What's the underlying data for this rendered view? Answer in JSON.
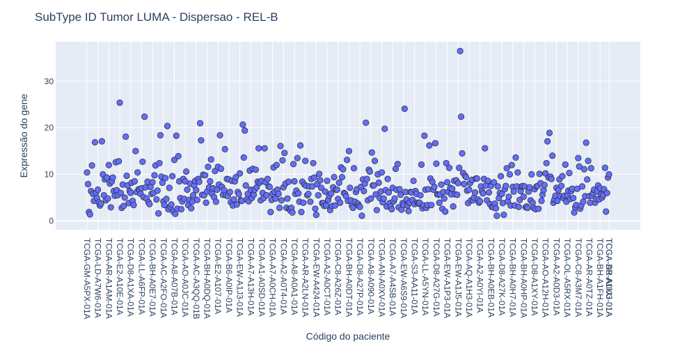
{
  "chart_data": {
    "type": "scatter",
    "title": "SubType ID Tumor LUMA - Dispersao - REL-B",
    "xlabel": "Código do paciente",
    "ylabel": "Expressão do gene",
    "ylim": [
      -1.9,
      38.5
    ],
    "yticks": [
      0,
      10,
      20,
      30
    ],
    "grid": true,
    "legend": "none",
    "colors": {
      "plot_bg": "#e5ecf6",
      "grid": "#ffffff",
      "marker": "#636efa",
      "marker_edge": "#2f2f3a",
      "text": "#2a3f5f"
    },
    "x_labels": [
      "TCGA-GM-A5PX-01A",
      "TCGA-LD-A7W6-01A",
      "TCGA-AR-A1AM-01A",
      "TCGA-E2-A10E-01A",
      "TCGA-D8-A1XA-01A",
      "TCGA-LL-A6FP-01A",
      "TCGA-BH-A0E7-01A",
      "TCGA-AC-A2FO-01A",
      "TCGA-A8-A07B-01A",
      "TCGA-AO-A0JC-01A",
      "TCGA-AC-A3QQ-01B",
      "TCGA-BH-A0DQ-01A",
      "TCGA-E2-A107-01A",
      "TCGA-B6-A0IP-01A",
      "TCGA-EW-A1J3-01A",
      "TCGA-A7-A13H-01A",
      "TCGA-A1-A0SD-01A",
      "TCGA-A7-A0CH-01A",
      "TCGA-A2-A0T4-01A",
      "TCGA-A8-A0A1-01A",
      "TCGA-AR-A2LN-01A",
      "TCGA-EW-A424-01A",
      "TCGA-A2-A0CT-01A",
      "TCGA-C8-A26Z-01A",
      "TCGA-BH-A0DT-01A",
      "TCGA-D8-A27P-01A",
      "TCGA-A8-A090-01A",
      "TCGA-AN-A0XV-01A",
      "TCGA-A7-A4SB-01A",
      "TCGA-EW-A6S9-01A",
      "TCGA-S3-AA11-01A",
      "TCGA-LL-A5YN-01A",
      "TCGA-D8-A27G-01A",
      "TCGA-EW-A1P3-01A",
      "TCGA-EW-A1J5-01A",
      "TCGA-AQ-A1H3-01A",
      "TCGA-A2-A0YI-01A",
      "TCGA-BH-A0EB-01A",
      "TCGA-D8-A27K-01A",
      "TCGA-BH-A0H7-01A",
      "TCGA-BH-A0HP-01A",
      "TCGA-D8-A1XY-01A",
      "TCGA-AO-A12H-01A",
      "TCGA-A2-A0D3-01A",
      "TCGA-OL-A5RX-01A",
      "TCGA-C8-A3M7-01A",
      "TCGA-AR-A0TZ-01A",
      "TCGA-BH-A1FH-01A",
      "TCGA-D8-A1XU-01A",
      "TCGA-AR-A0U3-01A"
    ],
    "y": [
      10.4,
      7.9,
      1.9,
      1.4,
      6.4,
      11.9,
      5.8,
      4.3,
      16.9,
      6.0,
      4.9,
      6.7,
      4.0,
      3.3,
      3.7,
      17.1,
      10.0,
      5.5,
      8.9,
      4.4,
      9.3,
      4.8,
      12.0,
      8.0,
      2.9,
      8.5,
      9.3,
      6.4,
      5.4,
      12.6,
      6.6,
      5.5,
      12.8,
      25.4,
      6.0,
      2.8,
      7.8,
      3.2,
      5.0,
      18.1,
      9.7,
      7.6,
      3.8,
      6.4,
      6.0,
      8.2,
      4.3,
      3.4,
      8.5,
      15.0,
      6.2,
      10.4,
      6.8,
      6.6,
      5.8,
      7.0,
      12.7,
      5.1,
      22.4,
      7.2,
      4.8,
      8.4,
      4.0,
      3.6,
      7.3,
      5.8,
      8.3,
      6.0,
      9.8,
      11.9,
      4.6,
      6.5,
      1.6,
      12.4,
      18.4,
      9.5,
      8.2,
      4.2,
      3.4,
      9.2,
      4.7,
      20.4,
      2.5,
      7.1,
      3.0,
      3.5,
      9.6,
      2.0,
      13.1,
      1.5,
      18.3,
      2.6,
      13.9,
      8.5,
      4.9,
      2.5,
      4.2,
      9.0,
      4.7,
      8.5,
      10.6,
      6.7,
      3.4,
      4.5,
      8.0,
      2.7,
      4.1,
      5.5,
      7.6,
      8.6,
      6.6,
      4.5,
      9.0,
      8.4,
      21.0,
      17.3,
      5.6,
      9.9,
      5.5,
      9.8,
      3.9,
      6.3,
      11.6,
      7.2,
      8.5,
      13.2,
      5.8,
      7.0,
      5.1,
      10.7,
      4.1,
      6.7,
      11.6,
      7.8,
      18.4,
      11.2,
      7.3,
      5.6,
      6.6,
      15.4,
      5.5,
      9.0,
      5.3,
      8.9,
      6.2,
      4.0,
      8.6,
      3.3,
      4.6,
      8.5,
      9.4,
      3.5,
      6.2,
      5.7,
      10.2,
      4.4,
      4.3,
      20.7,
      13.6,
      19.4,
      7.6,
      4.6,
      5.8,
      4.2,
      10.8,
      6.7,
      4.9,
      11.2,
      5.6,
      6.7,
      11.0,
      7.2,
      8.4,
      15.6,
      8.2,
      4.4,
      8.6,
      6.0,
      4.9,
      15.6,
      8.3,
      5.5,
      9.0,
      7.4,
      7.3,
      1.9,
      4.5,
      5.8,
      11.5,
      6.3,
      4.8,
      12.0,
      6.7,
      5.8,
      2.8,
      16.1,
      4.4,
      13.0,
      7.2,
      14.6,
      8.0,
      2.8,
      4.8,
      8.4,
      2.5,
      2.2,
      2.8,
      1.8,
      12.2,
      8.5,
      5.8,
      6.5,
      13.5,
      5.9,
      4.1,
      16.2,
      1.9,
      8.4,
      3.9,
      7.8,
      12.9,
      7.5,
      5.5,
      5.8,
      7.4,
      4.1,
      9.0,
      7.4,
      12.4,
      9.3,
      2.6,
      1.3,
      7.9,
      5.5,
      10.1,
      8.7,
      7.1,
      3.8,
      3.8,
      3.2,
      6.3,
      3.3,
      8.6,
      4.5,
      5.4,
      2.3,
      5.9,
      3.2,
      7.2,
      9.4,
      3.3,
      6.7,
      6.7,
      4.7,
      8.2,
      3.9,
      11.5,
      9.4,
      11.1,
      6.0,
      5.8,
      5.3,
      13.1,
      4.3,
      15.0,
      7.1,
      4.4,
      3.2,
      2.8,
      11.3,
      4.1,
      6.2,
      6.8,
      3.7,
      3.2,
      3.0,
      7.3,
      1.1,
      8.9,
      6.4,
      8.0,
      21.1,
      9.0,
      4.4,
      11.0,
      10.6,
      4.8,
      14.7,
      7.6,
      7.6,
      12.9,
      5.7,
      2.3,
      10.0,
      8.2,
      4.9,
      6.3,
      10.4,
      4.0,
      4.8,
      19.8,
      6.6,
      3.1,
      9.0,
      6.1,
      3.8,
      3.1,
      2.5,
      7.1,
      4.2,
      4.8,
      11.2,
      6.7,
      12.2,
      2.9,
      6.8,
      5.6,
      2.4,
      3.8,
      3.4,
      24.1,
      6.2,
      4.6,
      3.3,
      2.1,
      3.9,
      6.2,
      6.1,
      4.5,
      8.6,
      3.6,
      6.4,
      5.8,
      3.9,
      3.7,
      3.9,
      5.5,
      12.1,
      2.7,
      3.3,
      18.3,
      6.7,
      2.8,
      3.4,
      6.8,
      16.2,
      9.1,
      3.4,
      8.4,
      6.7,
      7.3,
      16.7,
      12.3,
      5.7,
      5.6,
      3.9,
      5.7,
      7.8,
      2.6,
      6.2,
      4.8,
      2.0,
      12.4,
      8.3,
      6.2,
      11.4,
      7.1,
      5.7,
      6.9,
      3.1,
      8.6,
      5.7,
      8.7,
      5.6,
      8.1,
      11.4,
      36.5,
      22.4,
      14.5,
      10.3,
      7.9,
      9.7,
      9.4,
      6.5,
      3.8,
      6.7,
      8.1,
      4.4,
      8.8,
      4.4,
      5.0,
      6.1,
      9.1,
      9.1,
      4.6,
      3.9,
      4.2,
      7.4,
      6.4,
      5.9,
      9.0,
      15.6,
      7.6,
      4.4,
      8.6,
      6.1,
      3.6,
      7.5,
      3.0,
      2.9,
      8.3,
      3.7,
      2.7,
      1.1,
      7.4,
      4.9,
      6.0,
      9.6,
      5.8,
      3.8,
      1.3,
      6.8,
      7.5,
      11.3,
      4.2,
      5.2,
      10.0,
      3.3,
      12.0,
      7.3,
      6.3,
      3.3,
      13.6,
      7.4,
      10.4,
      3.0,
      4.5,
      6.4,
      7.4,
      7.5,
      5.2,
      7.4,
      2.9,
      3.1,
      2.8,
      6.3,
      7.2,
      4.4,
      10.0,
      3.9,
      2.8,
      6.8,
      2.5,
      7.4,
      7.5,
      2.6,
      10.1,
      8.1,
      4.3,
      5.6,
      6.6,
      7.7,
      10.2,
      12.4,
      17.1,
      9.3,
      18.9,
      9.5,
      9.0,
      14.0,
      3.9,
      4.6,
      5.4,
      7.1,
      4.3,
      6.6,
      8.9,
      5.3,
      7.5,
      9.6,
      4.9,
      5.4,
      12.1,
      4.1,
      5.5,
      6.5,
      10.3,
      4.7,
      6.4,
      6.9,
      4.9,
      1.8,
      2.9,
      3.4,
      6.9,
      13.5,
      11.7,
      2.6,
      3.3,
      7.4,
      4.1,
      11.1,
      5.3,
      16.8,
      8.9,
      12.9,
      5.3,
      3.9,
      11.3,
      5.4,
      6.0,
      6.7,
      3.9,
      4.7,
      6.3,
      7.6,
      4.6,
      7.0,
      5.7,
      5.0,
      5.5,
      6.8,
      11.4,
      2.0,
      6.0,
      9.3,
      10.0
    ]
  }
}
